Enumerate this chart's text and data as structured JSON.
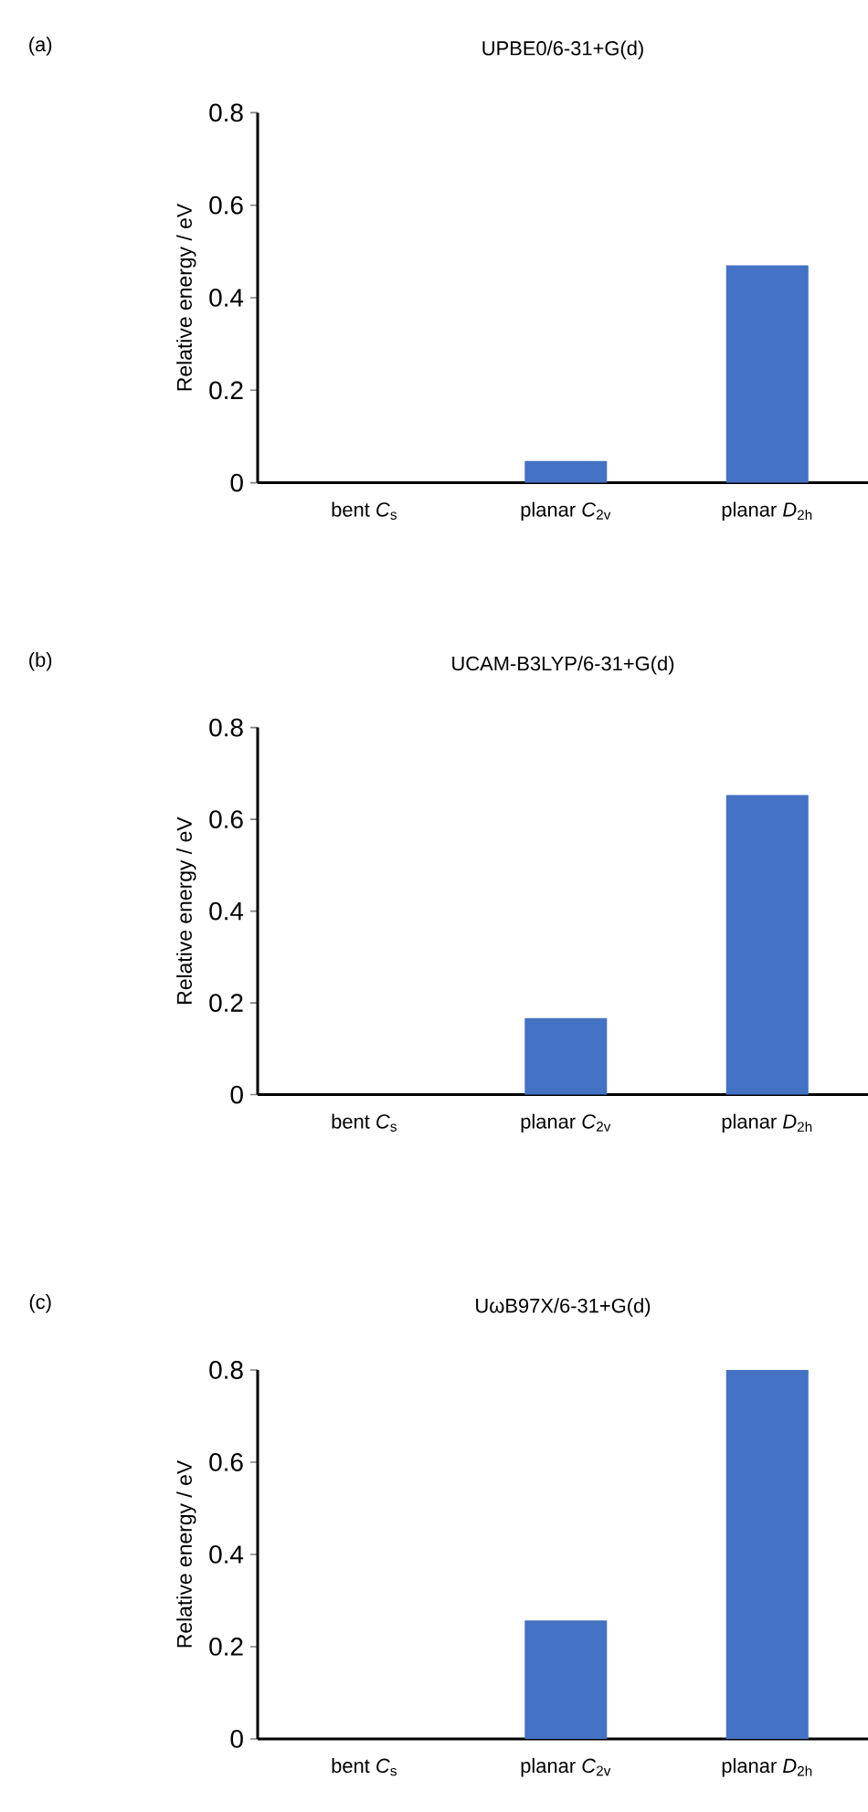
{
  "chart_data": [
    {
      "type": "bar",
      "title": "UPBE0/6-31+G(d)",
      "ylabel": "Relative energy / eV",
      "categories": [
        "bent *C*$_{s}$",
        "planar *C*$_{2v}$",
        "planar *D*$_{2h}$"
      ],
      "values": [
        0,
        0.047,
        0.47
      ],
      "color": "#4472c4",
      "ylim": [
        0,
        0.8
      ],
      "yticks": [
        0,
        0.2,
        0.4,
        0.6,
        0.8
      ],
      "annotations": [
        "(a)"
      ]
    },
    {
      "type": "bar",
      "title": "UCAM-B3LYP/6-31+G(d)",
      "ylabel": "Relative energy / eV",
      "categories": [
        "bent *C*$_{s}$",
        "planar *C*$_{2v}$",
        "planar *D*$_{2h}$"
      ],
      "values": [
        0,
        0.167,
        0.653
      ],
      "color": "#4472c4",
      "ylim": [
        0,
        0.8
      ],
      "yticks": [
        0,
        0.2,
        0.4,
        0.6,
        0.8
      ],
      "annotations": [
        "(b)"
      ]
    },
    {
      "type": "bar",
      "title": "UωB97X/6-31+G(d)",
      "ylabel": "Relative energy / eV",
      "categories": [
        "bent *C*$_{s}$",
        "planar *C*$_{2v}$",
        "planar *D*$_{2h}$"
      ],
      "values": [
        0,
        0.257,
        0.8
      ],
      "color": "#4472c4",
      "ylim": [
        0,
        0.8
      ],
      "yticks": [
        0,
        0.2,
        0.4,
        0.6,
        0.8
      ],
      "annotations": [
        "(c)"
      ]
    }
  ]
}
